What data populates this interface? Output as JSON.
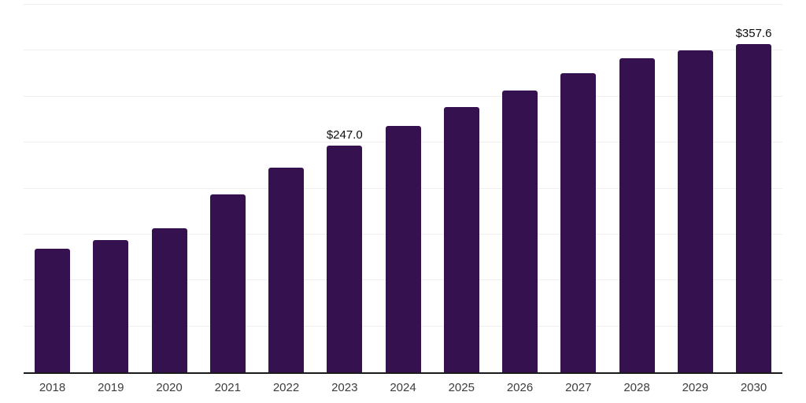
{
  "chart_data": {
    "type": "bar",
    "categories": [
      "2018",
      "2019",
      "2020",
      "2021",
      "2022",
      "2023",
      "2024",
      "2025",
      "2026",
      "2027",
      "2028",
      "2029",
      "2030"
    ],
    "values": [
      134.7,
      144.0,
      157.1,
      193.8,
      222.5,
      247.0,
      268.1,
      288.6,
      306.4,
      325.8,
      341.6,
      350.3,
      357.6
    ],
    "data_labels": {
      "2023": "$247.0",
      "2030": "$357.6"
    },
    "title": "",
    "xlabel": "",
    "ylabel": "",
    "ylim": [
      0,
      400
    ],
    "gridline_step": 50,
    "grid": "horizontal-only",
    "legend": "none",
    "y_tick_labels_visible": false
  },
  "colors": {
    "bar": "#36114F",
    "gridline": "#efefef",
    "axis_line": "#1a1a1a",
    "x_tick_label": "#3d3d3d",
    "data_label": "#0d0d0d",
    "background": "#ffffff"
  }
}
